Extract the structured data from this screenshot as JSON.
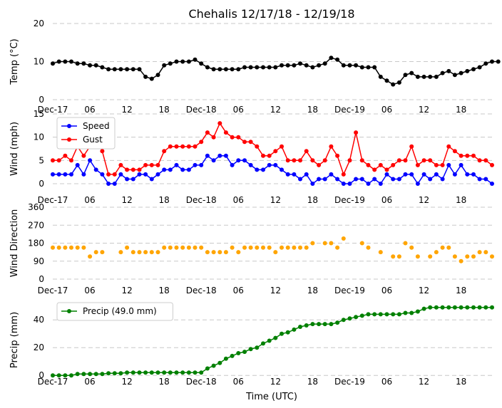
{
  "chart_data": {
    "title": "Chehalis 12/17/18 - 12/19/18",
    "xlabel": "Time (UTC)",
    "x_tick_labels": [
      "Dec-17",
      "06",
      "12",
      "18",
      "Dec-18",
      "06",
      "12",
      "18",
      "Dec-19",
      "06",
      "12",
      "18"
    ],
    "x_tick_hours": [
      0,
      6,
      12,
      18,
      24,
      30,
      36,
      42,
      48,
      54,
      60,
      66
    ],
    "x_range_hours": [
      0,
      71
    ],
    "panels": [
      {
        "id": "temp",
        "type": "line",
        "ylabel": "Temp (°C)",
        "ylim": [
          0,
          20
        ],
        "yticks": [
          0,
          10,
          20
        ],
        "series": [
          {
            "name": "Temp",
            "color": "#000000",
            "values": [
              9.5,
              10,
              10,
              10,
              9.5,
              9.5,
              9,
              9,
              8.5,
              8,
              8,
              8,
              8,
              8,
              8,
              6,
              5.5,
              6.5,
              9,
              9.5,
              10,
              10,
              10,
              10.5,
              9.5,
              8.5,
              8,
              8,
              8,
              8,
              8,
              8.5,
              8.5,
              8.5,
              8.5,
              8.5,
              8.5,
              9,
              9,
              9,
              9.5,
              9,
              8.5,
              9,
              9.5,
              11,
              10.5,
              9,
              9,
              9,
              8.5,
              8.5,
              8.5,
              6,
              5,
              4,
              4.5,
              6.5,
              7,
              6,
              6,
              6,
              6,
              7,
              7.5,
              6.5,
              7,
              7.5,
              8,
              8.5,
              9.5,
              10,
              10
            ]
          }
        ]
      },
      {
        "id": "wind",
        "type": "line",
        "ylabel": "Wind (mph)",
        "ylim": [
          0,
          15
        ],
        "yticks": [
          0,
          5,
          10,
          15
        ],
        "legend": "top-left",
        "series": [
          {
            "name": "Speed",
            "color": "#0000ff",
            "values": [
              2,
              2,
              2,
              2,
              4,
              2,
              5,
              3,
              2,
              0,
              0,
              2,
              1,
              1,
              2,
              2,
              1,
              2,
              3,
              3,
              4,
              3,
              3,
              4,
              4,
              6,
              5,
              6,
              6,
              4,
              5,
              5,
              4,
              3,
              3,
              4,
              4,
              3,
              2,
              2,
              1,
              2,
              0,
              1,
              1,
              2,
              1,
              0,
              0,
              1,
              1,
              0,
              1,
              0,
              2,
              1,
              1,
              2,
              2,
              0,
              2,
              1,
              2,
              1,
              4,
              2,
              4,
              2,
              2,
              1,
              1,
              0
            ]
          },
          {
            "name": "Gust",
            "color": "#ff0000",
            "values": [
              5,
              5,
              6,
              5,
              8,
              6,
              8,
              11,
              7,
              2,
              2,
              4,
              3,
              3,
              3,
              4,
              4,
              4,
              7,
              8,
              8,
              8,
              8,
              8,
              9,
              11,
              10,
              13,
              11,
              10,
              10,
              9,
              9,
              8,
              6,
              6,
              7,
              8,
              5,
              5,
              5,
              7,
              5,
              4,
              5,
              8,
              6,
              2,
              5,
              11,
              5,
              4,
              3,
              4,
              3,
              4,
              5,
              5,
              8,
              4,
              5,
              5,
              4,
              4,
              8,
              7,
              6,
              6,
              6,
              5,
              5,
              4
            ]
          }
        ]
      },
      {
        "id": "dir",
        "type": "scatter",
        "ylabel": "Wind Direction",
        "ylim": [
          0,
          360
        ],
        "yticks": [
          0,
          90,
          180,
          270,
          360
        ],
        "series": [
          {
            "name": "Direction",
            "color": "#ffa500",
            "values": [
              158,
              158,
              158,
              158,
              158,
              158,
              113,
              135,
              135,
              null,
              null,
              135,
              158,
              135,
              135,
              135,
              135,
              135,
              158,
              158,
              158,
              158,
              158,
              158,
              158,
              135,
              135,
              135,
              135,
              158,
              135,
              158,
              158,
              158,
              158,
              158,
              135,
              158,
              158,
              158,
              158,
              158,
              180,
              null,
              180,
              180,
              158,
              203,
              null,
              null,
              180,
              158,
              null,
              135,
              null,
              113,
              113,
              180,
              158,
              113,
              null,
              113,
              135,
              158,
              158,
              113,
              90,
              113,
              113,
              135,
              135,
              113,
              null
            ]
          }
        ]
      },
      {
        "id": "precip",
        "type": "line",
        "ylabel": "Precip (mm)",
        "ylim": [
          -4,
          55
        ],
        "yticks": [
          0,
          20,
          40
        ],
        "legend": "top-left",
        "series": [
          {
            "name": "Precip (49.0 mm)",
            "color": "#008000",
            "values": [
              0,
              0,
              0,
              0,
              1,
              1,
              1,
              1,
              1,
              1.5,
              1.5,
              1.5,
              2,
              2,
              2,
              2,
              2,
              2,
              2,
              2,
              2,
              2,
              2,
              2,
              2,
              5,
              7,
              9,
              12,
              14,
              16,
              17,
              19,
              20,
              23,
              25,
              27,
              30,
              31,
              33,
              35,
              36,
              37,
              37,
              37,
              37,
              38,
              40,
              41,
              42,
              43,
              44,
              44,
              44,
              44,
              44,
              44,
              45,
              45,
              46,
              48,
              49,
              49,
              49,
              49,
              49,
              49,
              49,
              49,
              49,
              49,
              49
            ]
          }
        ]
      }
    ]
  }
}
